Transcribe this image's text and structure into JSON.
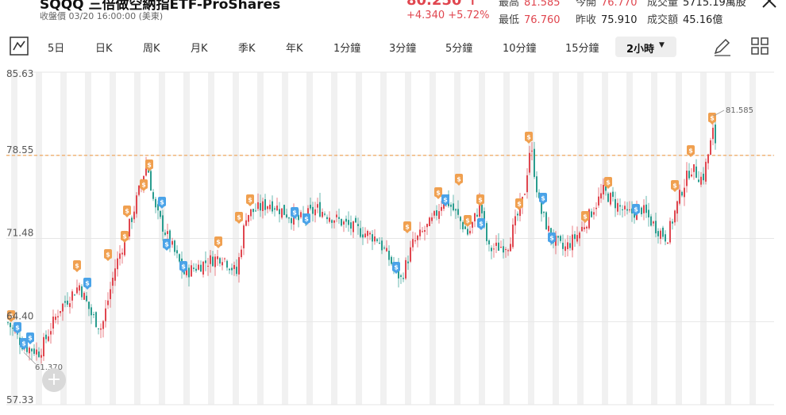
{
  "header": {
    "title": "SQQQ 三倍做空納指ETF-ProShares",
    "subtitle": "收盤價 03/20 16:00:00 (美東)",
    "price": "80.250",
    "change": "+4.340 +5.72%",
    "stats": [
      {
        "label": "最高",
        "value": "81.585",
        "color": "red"
      },
      {
        "label": "今開",
        "value": "76.770",
        "color": "red"
      },
      {
        "label": "成交量",
        "value": "5715.19萬股",
        "color": "dark"
      },
      {
        "label": "最低",
        "value": "76.760",
        "color": "red"
      },
      {
        "label": "昨收",
        "value": "75.910",
        "color": "dark"
      },
      {
        "label": "成交額",
        "value": "45.16億",
        "color": "dark"
      }
    ]
  },
  "toolbar": {
    "items": [
      "5日",
      "日K",
      "周K",
      "月K",
      "季K",
      "年K",
      "1分鐘",
      "3分鐘",
      "5分鐘",
      "10分鐘",
      "15分鐘"
    ],
    "selected": "2小時",
    "icons": [
      "chart-type-icon",
      "draw-pen-icon",
      "grid-layout-icon"
    ]
  },
  "chart_data": {
    "type": "candlestick",
    "y_axis_labels": [
      "85.63",
      "78.55",
      "71.48",
      "64.40",
      "57.33"
    ],
    "ylim": [
      57.33,
      85.63
    ],
    "reference_line": 78.55,
    "high_label": "81.585",
    "low_label": "61.370",
    "grid": true,
    "colors": {
      "up": "#e0464f",
      "down": "#2a9d8f",
      "ref": "#f0a050",
      "sell_marker": "#f0a050",
      "buy_marker": "#4aa3e8"
    }
  },
  "zoom_button": "+"
}
